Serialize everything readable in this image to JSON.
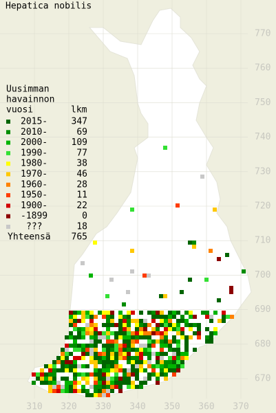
{
  "title": "Hepatica nobilis",
  "legend": {
    "heading": [
      "Uusimman",
      "havainnon",
      "vuosi"
    ],
    "count_heading": "lkm",
    "rows": [
      {
        "label": "2015-",
        "count": 347,
        "color": "#006400"
      },
      {
        "label": "2010-",
        "count": 69,
        "color": "#008c00"
      },
      {
        "label": "2000-",
        "count": 109,
        "color": "#00b400"
      },
      {
        "label": "1990-",
        "count": 77,
        "color": "#33e033"
      },
      {
        "label": "1980-",
        "count": 38,
        "color": "#ffff00"
      },
      {
        "label": "1970-",
        "count": 46,
        "color": "#ffc800"
      },
      {
        "label": "1960-",
        "count": 28,
        "color": "#ff8200"
      },
      {
        "label": "1950-",
        "count": 11,
        "color": "#ff3c00"
      },
      {
        "label": "1900-",
        "count": 22,
        "color": "#d20000"
      },
      {
        "label": "-1899",
        "count": 0,
        "color": "#8c0000"
      },
      {
        "label": "???",
        "count": 18,
        "color": "#c8c8c8"
      }
    ],
    "total": {
      "label": "Yhteensä",
      "count": 765
    }
  },
  "grid": {
    "northing": [
      770,
      760,
      750,
      740,
      730,
      720,
      710,
      700,
      690,
      680,
      670
    ],
    "easting": [
      310,
      320,
      330,
      340,
      350,
      360,
      370
    ]
  }
}
